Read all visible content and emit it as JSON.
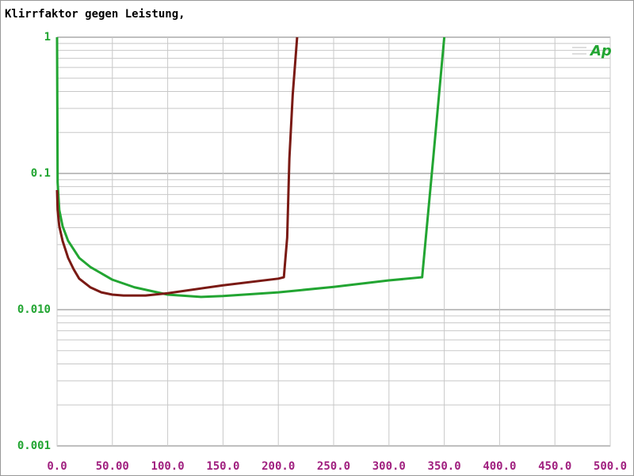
{
  "chart_data": {
    "type": "line",
    "title": "Klirrfaktor gegen Leistung,",
    "logo": "Ap",
    "log_y": true,
    "grid": true,
    "minor_grid": true,
    "xlim": [
      0,
      500
    ],
    "xticks": [
      {
        "value": 0,
        "label": "0.0"
      },
      {
        "value": 50,
        "label": "50.00"
      },
      {
        "value": 100,
        "label": "100.0"
      },
      {
        "value": 150,
        "label": "150.0"
      },
      {
        "value": 200,
        "label": "200.0"
      },
      {
        "value": 250,
        "label": "250.0"
      },
      {
        "value": 300,
        "label": "300.0"
      },
      {
        "value": 350,
        "label": "350.0"
      },
      {
        "value": 400,
        "label": "400.0"
      },
      {
        "value": 450,
        "label": "450.0"
      },
      {
        "value": 500,
        "label": "500.0"
      }
    ],
    "ylim": [
      0.001,
      1
    ],
    "yticks": [
      0.001,
      {
        "value": 0.01,
        "label": "0.010"
      },
      0.1,
      1
    ],
    "series": [
      {
        "color": "#22a532",
        "x": [
          0,
          0.5,
          2,
          5,
          10,
          20,
          30,
          50,
          70,
          100,
          130,
          150,
          200,
          250,
          300,
          330,
          340,
          350
        ],
        "values": [
          1,
          0.086,
          0.054,
          0.041,
          0.032,
          0.024,
          0.0206,
          0.0166,
          0.0146,
          0.0129,
          0.0124,
          0.0126,
          0.0134,
          0.0147,
          0.0164,
          0.0173,
          0.129,
          1
        ]
      },
      {
        "color": "#7a1a14",
        "x": [
          0,
          0.5,
          2,
          5,
          10,
          15,
          20,
          30,
          40,
          50,
          60,
          80,
          100,
          150,
          200,
          205,
          208,
          210,
          213,
          217
        ],
        "values": [
          0.0755,
          0.054,
          0.041,
          0.032,
          0.024,
          0.0198,
          0.0169,
          0.0146,
          0.0134,
          0.0129,
          0.0127,
          0.0127,
          0.0132,
          0.0151,
          0.0169,
          0.0173,
          0.0338,
          0.129,
          0.377,
          1
        ]
      }
    ]
  }
}
